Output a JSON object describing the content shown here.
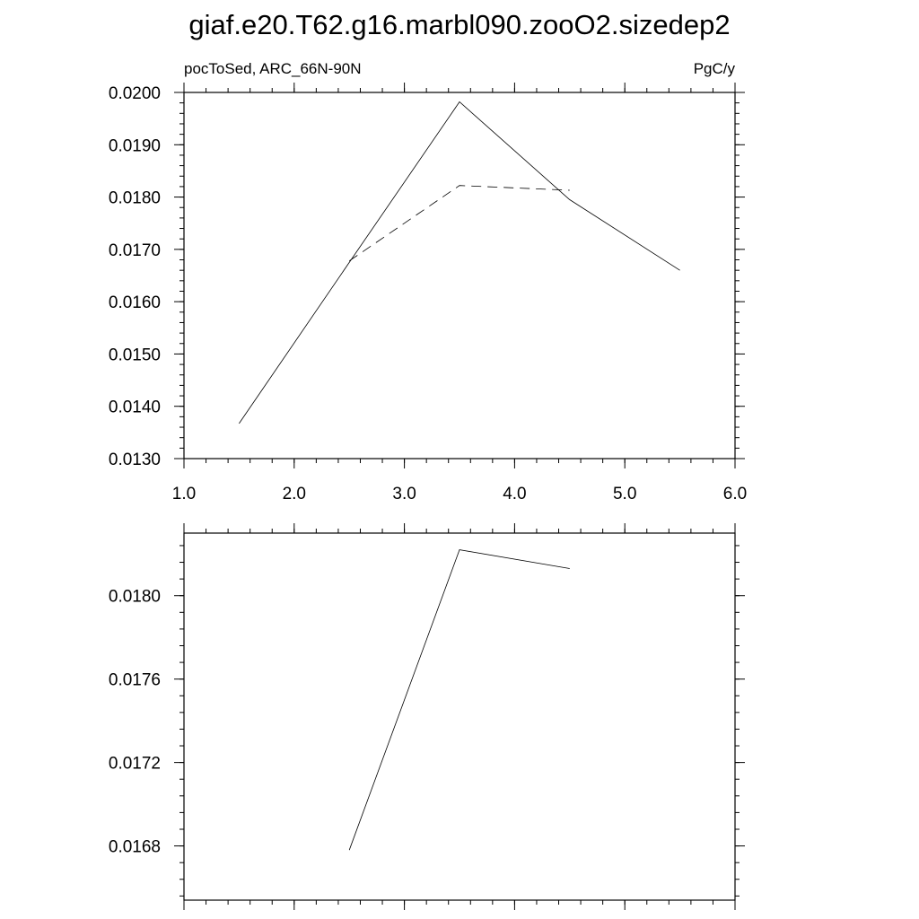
{
  "figure": {
    "title": "giaf.e20.T62.g16.marbl090.zooO2.sizedep2"
  },
  "chart_data": [
    {
      "type": "line",
      "left_label": "pocToSed, ARC_66N-90N",
      "right_label": "PgC/y",
      "xlim": [
        1.0,
        6.0
      ],
      "ylim": [
        0.013,
        0.02
      ],
      "x_ticks": [
        1.0,
        2.0,
        3.0,
        4.0,
        5.0,
        6.0
      ],
      "x_tick_labels": [
        "1.0",
        "2.0",
        "3.0",
        "4.0",
        "5.0",
        "6.0"
      ],
      "y_ticks": [
        0.013,
        0.014,
        0.015,
        0.016,
        0.017,
        0.018,
        0.019,
        0.02
      ],
      "y_tick_labels": [
        "0.0130",
        "0.0140",
        "0.0150",
        "0.0160",
        "0.0170",
        "0.0180",
        "0.0190",
        "0.0200"
      ],
      "grid": false,
      "series": [
        {
          "style": "solid",
          "x": [
            1.5,
            2.5,
            3.5,
            4.5,
            5.5
          ],
          "values": [
            0.01367,
            0.01675,
            0.01982,
            0.01795,
            0.0166
          ]
        },
        {
          "style": "dashed",
          "x": [
            2.5,
            3.5,
            4.5
          ],
          "values": [
            0.01678,
            0.01822,
            0.01813
          ]
        }
      ]
    },
    {
      "type": "line",
      "xlim": [
        1.0,
        6.0
      ],
      "ylim": [
        0.01654,
        0.0183
      ],
      "x_ticks": [
        1.0,
        2.0,
        3.0,
        4.0,
        5.0,
        6.0
      ],
      "x_tick_labels": [],
      "y_ticks": [
        0.0168,
        0.0172,
        0.0176,
        0.018
      ],
      "y_tick_labels": [
        "0.0168",
        "0.0172",
        "0.0176",
        "0.0180"
      ],
      "grid": false,
      "series": [
        {
          "style": "solid",
          "x": [
            2.5,
            3.5,
            4.5
          ],
          "values": [
            0.01678,
            0.01822,
            0.01813
          ]
        }
      ]
    }
  ]
}
